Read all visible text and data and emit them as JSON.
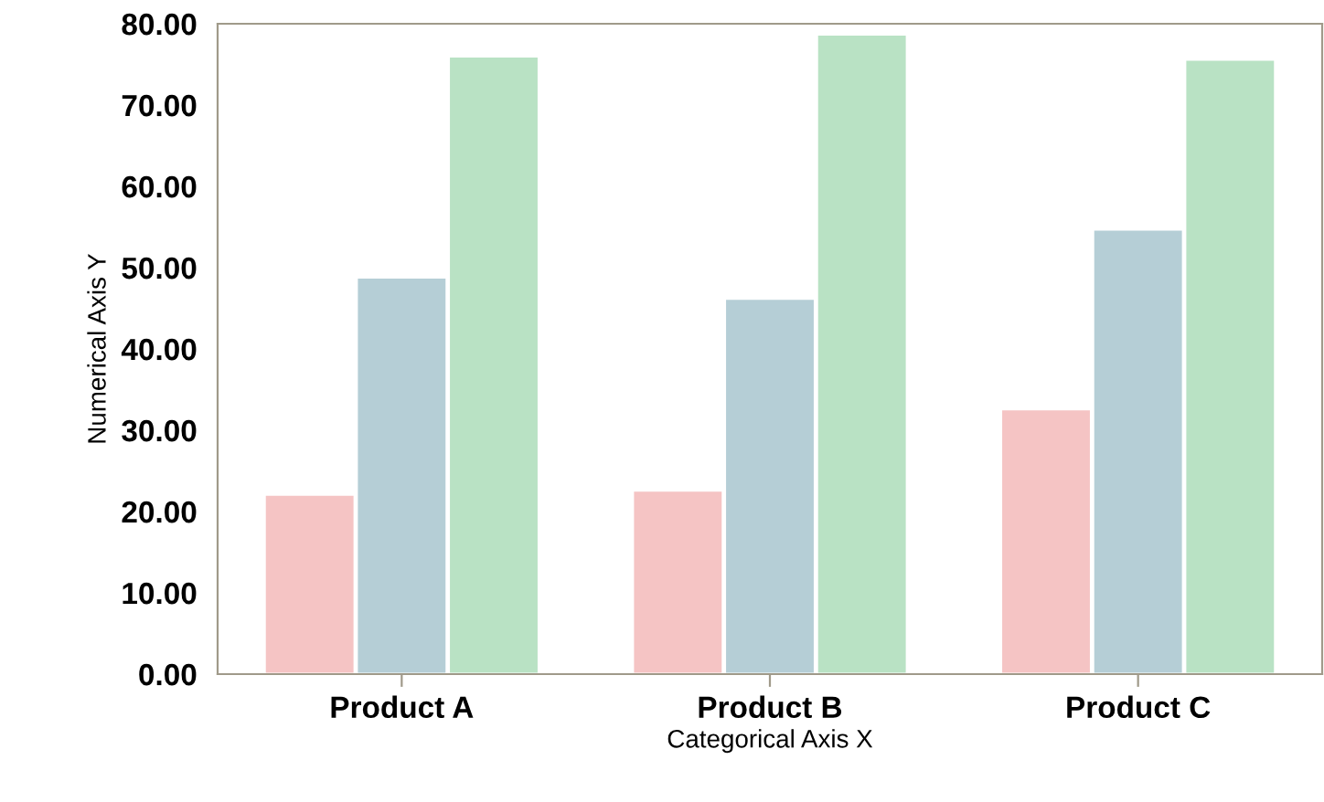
{
  "chart_data": {
    "type": "bar",
    "xlabel": "Categorical Axis X",
    "ylabel": "Numerical Axis Y",
    "categories": [
      "Product A",
      "Product B",
      "Product C"
    ],
    "series": [
      {
        "color": "#f5c4c4",
        "values": [
          22.1,
          22.6,
          32.6
        ]
      },
      {
        "color": "#b5ced6",
        "values": [
          48.8,
          46.2,
          54.7
        ]
      },
      {
        "color": "#b9e2c4",
        "values": [
          76.0,
          78.7,
          75.6
        ]
      }
    ],
    "ylim": [
      0,
      80
    ],
    "yticks": [
      {
        "value": 0,
        "label": "0.00"
      },
      {
        "value": 10,
        "label": "10.00"
      },
      {
        "value": 20,
        "label": "20.00"
      },
      {
        "value": 30,
        "label": "30.00"
      },
      {
        "value": 40,
        "label": "40.00"
      },
      {
        "value": 50,
        "label": "50.00"
      },
      {
        "value": 60,
        "label": "60.00"
      },
      {
        "value": 70,
        "label": "70.00"
      },
      {
        "value": 80,
        "label": "80.00"
      }
    ],
    "grid": false,
    "legend": false
  }
}
